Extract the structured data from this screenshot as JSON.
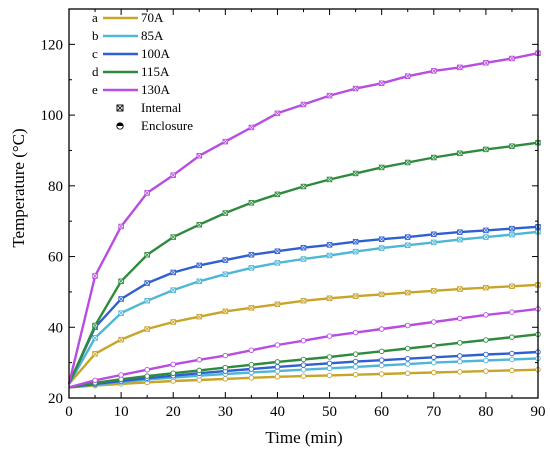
{
  "chart_data": {
    "type": "line",
    "xlabel": "Time (min)",
    "ylabel": "Temperature (°C)",
    "xlim": [
      0,
      90
    ],
    "ylim": [
      20,
      130
    ],
    "xticks": [
      0,
      10,
      20,
      30,
      40,
      50,
      60,
      70,
      80,
      90
    ],
    "yticks": [
      20,
      40,
      60,
      80,
      100,
      120
    ],
    "grid": false,
    "legend_position": "top-left",
    "x": [
      0,
      5,
      10,
      15,
      20,
      25,
      30,
      35,
      40,
      45,
      50,
      55,
      60,
      65,
      70,
      75,
      80,
      85,
      90
    ],
    "series": [
      {
        "id": "a",
        "name": "70A",
        "location": "Internal",
        "color": "#c8a428",
        "values": [
          24,
          32.5,
          36.5,
          39.5,
          41.5,
          43,
          44.5,
          45.5,
          46.5,
          47.5,
          48.2,
          48.8,
          49.3,
          49.8,
          50.3,
          50.8,
          51.2,
          51.6,
          52
        ]
      },
      {
        "id": "b",
        "name": "85A",
        "location": "Internal",
        "color": "#4fb6d6",
        "values": [
          24,
          37,
          44,
          47.5,
          50.5,
          53,
          55,
          56.8,
          58.2,
          59.3,
          60.3,
          61.4,
          62.4,
          63.2,
          64,
          64.8,
          65.5,
          66.2,
          67
        ]
      },
      {
        "id": "c",
        "name": "100A",
        "location": "Internal",
        "color": "#2f5fd0",
        "values": [
          24,
          40,
          48,
          52.5,
          55.5,
          57.5,
          59,
          60.5,
          61.5,
          62.5,
          63.3,
          64.2,
          64.9,
          65.5,
          66.3,
          66.9,
          67.4,
          67.9,
          68.4
        ]
      },
      {
        "id": "d",
        "name": "115A",
        "location": "Internal",
        "color": "#2e8b3e",
        "values": [
          24,
          40.5,
          53,
          60.5,
          65.5,
          69,
          72.3,
          75.2,
          77.6,
          79.8,
          81.8,
          83.5,
          85.2,
          86.6,
          88,
          89.2,
          90.3,
          91.2,
          92.2
        ]
      },
      {
        "id": "e",
        "name": "130A",
        "location": "Internal",
        "color": "#b84de0",
        "values": [
          24,
          54.5,
          68.5,
          78,
          83,
          88.5,
          92.5,
          96.5,
          100.5,
          103,
          105.5,
          107.5,
          109,
          111,
          112.5,
          113.5,
          114.8,
          116,
          117.5
        ]
      },
      {
        "id": "a",
        "name": "70A",
        "location": "Enclosure",
        "color": "#c8a428",
        "values": [
          23,
          23.5,
          24,
          24.4,
          24.8,
          25.1,
          25.4,
          25.7,
          26,
          26.2,
          26.4,
          26.6,
          26.8,
          27,
          27.2,
          27.4,
          27.6,
          27.8,
          28
        ]
      },
      {
        "id": "b",
        "name": "85A",
        "location": "Enclosure",
        "color": "#4fb6d6",
        "values": [
          23,
          23.8,
          24.5,
          25.2,
          25.8,
          26.3,
          26.8,
          27.2,
          27.6,
          28,
          28.4,
          28.8,
          29.2,
          29.6,
          30,
          30.3,
          30.6,
          30.9,
          31.2
        ]
      },
      {
        "id": "c",
        "name": "100A",
        "location": "Enclosure",
        "color": "#2f5fd0",
        "values": [
          23,
          24,
          24.8,
          25.6,
          26.3,
          27,
          27.6,
          28.2,
          28.8,
          29.3,
          29.8,
          30.3,
          30.7,
          31.1,
          31.5,
          31.9,
          32.3,
          32.6,
          33
        ]
      },
      {
        "id": "d",
        "name": "115A",
        "location": "Enclosure",
        "color": "#2e8b3e",
        "values": [
          23,
          24.3,
          25.3,
          26.2,
          27,
          27.8,
          28.6,
          29.4,
          30.2,
          30.9,
          31.6,
          32.4,
          33.2,
          34,
          34.8,
          35.6,
          36.4,
          37.2,
          38
        ]
      },
      {
        "id": "e",
        "name": "130A",
        "location": "Enclosure",
        "color": "#b84de0",
        "values": [
          23,
          25,
          26.5,
          28,
          29.5,
          30.8,
          32,
          33.5,
          35,
          36.2,
          37.5,
          38.5,
          39.5,
          40.5,
          41.5,
          42.5,
          43.5,
          44.3,
          45.2
        ]
      }
    ],
    "legend": {
      "entries": [
        {
          "id": "a",
          "label": "70A",
          "color": "#c8a428"
        },
        {
          "id": "b",
          "label": "85A",
          "color": "#4fb6d6"
        },
        {
          "id": "c",
          "label": "100A",
          "color": "#2f5fd0"
        },
        {
          "id": "d",
          "label": "115A",
          "color": "#2e8b3e"
        },
        {
          "id": "e",
          "label": "130A",
          "color": "#b84de0"
        }
      ],
      "markers": [
        {
          "symbol": "boxed-x",
          "label": "Internal"
        },
        {
          "symbol": "half-filled-circle",
          "label": "Enclosure"
        }
      ]
    }
  }
}
